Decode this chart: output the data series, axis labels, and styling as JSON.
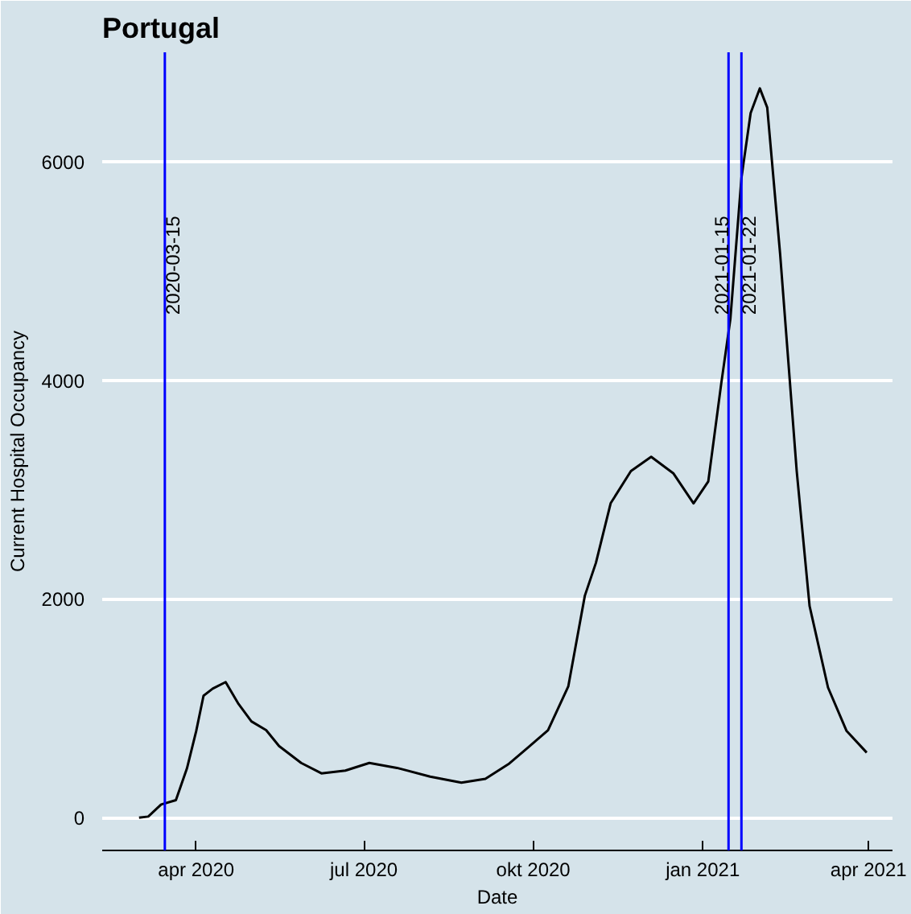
{
  "chart_data": {
    "type": "line",
    "title": "Portugal",
    "xlabel": "Date",
    "ylabel": "Current Hospital Occupancy",
    "x": [
      "2020-03-01",
      "2020-03-06",
      "2020-03-13",
      "2020-03-21",
      "2020-03-27",
      "2020-04-01",
      "2020-04-05",
      "2020-04-10",
      "2020-04-17",
      "2020-04-24",
      "2020-05-01",
      "2020-05-09",
      "2020-05-16",
      "2020-05-28",
      "2020-06-08",
      "2020-06-21",
      "2020-07-04",
      "2020-07-19",
      "2020-08-06",
      "2020-08-23",
      "2020-09-05",
      "2020-09-18",
      "2020-09-28",
      "2020-10-09",
      "2020-10-20",
      "2020-10-29",
      "2020-11-04",
      "2020-11-12",
      "2020-11-23",
      "2020-12-04",
      "2020-12-16",
      "2020-12-27",
      "2021-01-04",
      "2021-01-11",
      "2021-01-16",
      "2021-01-22",
      "2021-01-27",
      "2021-02-01",
      "2021-02-05",
      "2021-02-12",
      "2021-02-21",
      "2021-02-28",
      "2021-03-10",
      "2021-03-20",
      "2021-03-31"
    ],
    "series": [
      {
        "color": "#000000",
        "values": [
          0,
          10,
          120,
          160,
          450,
          790,
          1115,
          1180,
          1240,
          1040,
          880,
          800,
          655,
          500,
          405,
          430,
          500,
          455,
          375,
          320,
          355,
          495,
          640,
          800,
          1200,
          2030,
          2330,
          2875,
          3170,
          3300,
          3150,
          2875,
          3075,
          3965,
          4560,
          5850,
          6445,
          6670,
          6495,
          5155,
          3170,
          1935,
          1190,
          795,
          595
        ]
      }
    ],
    "xlim": [
      "2020-02-10",
      "2021-04-14"
    ],
    "xticks": [
      {
        "value": "2020-04-01",
        "label": "apr 2020"
      },
      {
        "value": "2020-07-01",
        "label": "jul 2020"
      },
      {
        "value": "2020-10-01",
        "label": "okt 2020"
      },
      {
        "value": "2021-01-01",
        "label": "jan 2021"
      },
      {
        "value": "2021-04-01",
        "label": "apr 2021"
      }
    ],
    "ylim": [
      -300,
      7000
    ],
    "yticks": [
      0,
      2000,
      4000,
      6000
    ],
    "grid": "y",
    "marker": "none",
    "line_style": "solid",
    "ref_lines": [
      {
        "axis": "x",
        "value": "2020-03-15",
        "label": "2020-03-15",
        "color": "#0000ff"
      },
      {
        "axis": "x",
        "value": "2021-01-15",
        "label": "2021-01-15",
        "color": "#0000ff"
      },
      {
        "axis": "x",
        "value": "2021-01-22",
        "label": "2021-01-22",
        "color": "#0000ff"
      }
    ]
  }
}
